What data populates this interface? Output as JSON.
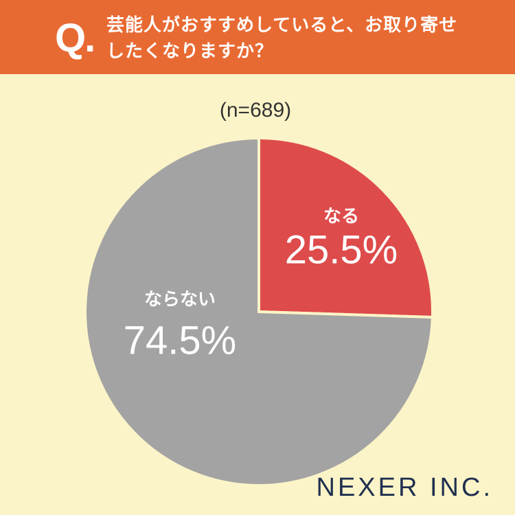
{
  "chart_data": {
    "type": "pie",
    "question_marker": "Q.",
    "title": "芸能人がおすすめしていると、お取り寄せしたくなりますか？",
    "subtitle": "(n=689)",
    "categories": [
      "なる",
      "ならない"
    ],
    "values": [
      25.5,
      74.5
    ],
    "value_labels": [
      "25.5%",
      "74.5%"
    ],
    "colors": [
      "#de4b4b",
      "#a3a3a3"
    ],
    "logo": "NEXER INC."
  }
}
